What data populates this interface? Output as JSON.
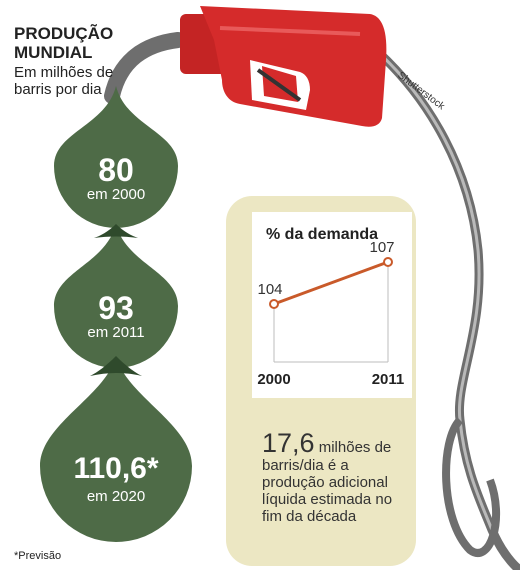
{
  "header": {
    "title_line1": "PRODUÇÃO",
    "title_line2": "MUNDIAL",
    "subtitle": "Em milhões de barris por dia"
  },
  "credit": "Shutterstock",
  "footnote": "*Previsão",
  "drops": [
    {
      "value": "80",
      "year": "em 2000"
    },
    {
      "value": "93",
      "year": "em 2011"
    },
    {
      "value": "110,6*",
      "year": "em 2020"
    }
  ],
  "note": {
    "big": "17,6",
    "rest": " milhões de barris/dia é a produção adicional líquida estimada no fim da década"
  },
  "colors": {
    "drop_green": "#4e6b47",
    "drop_overlap": "#2f4a2c",
    "nozzle_red": "#d52b2b",
    "hose_gray": "#6e6e6e",
    "panel_beige": "#ece7c3",
    "line_orange": "#c95a2a"
  },
  "chart_data": [
    {
      "type": "bar",
      "title": "PRODUÇÃO MUNDIAL",
      "subtitle": "Em milhões de barris por dia",
      "categories": [
        "2000",
        "2011",
        "2020"
      ],
      "values": [
        80,
        93,
        110.6
      ],
      "value_labels": [
        "80",
        "93",
        "110,6*"
      ],
      "footnote": "*Previsão"
    },
    {
      "type": "line",
      "title": "% da demanda",
      "x": [
        "2000",
        "2011"
      ],
      "y": [
        104,
        107
      ],
      "y_labels": [
        "104",
        "107"
      ],
      "ylim": [
        100,
        110
      ],
      "grid": false
    }
  ]
}
